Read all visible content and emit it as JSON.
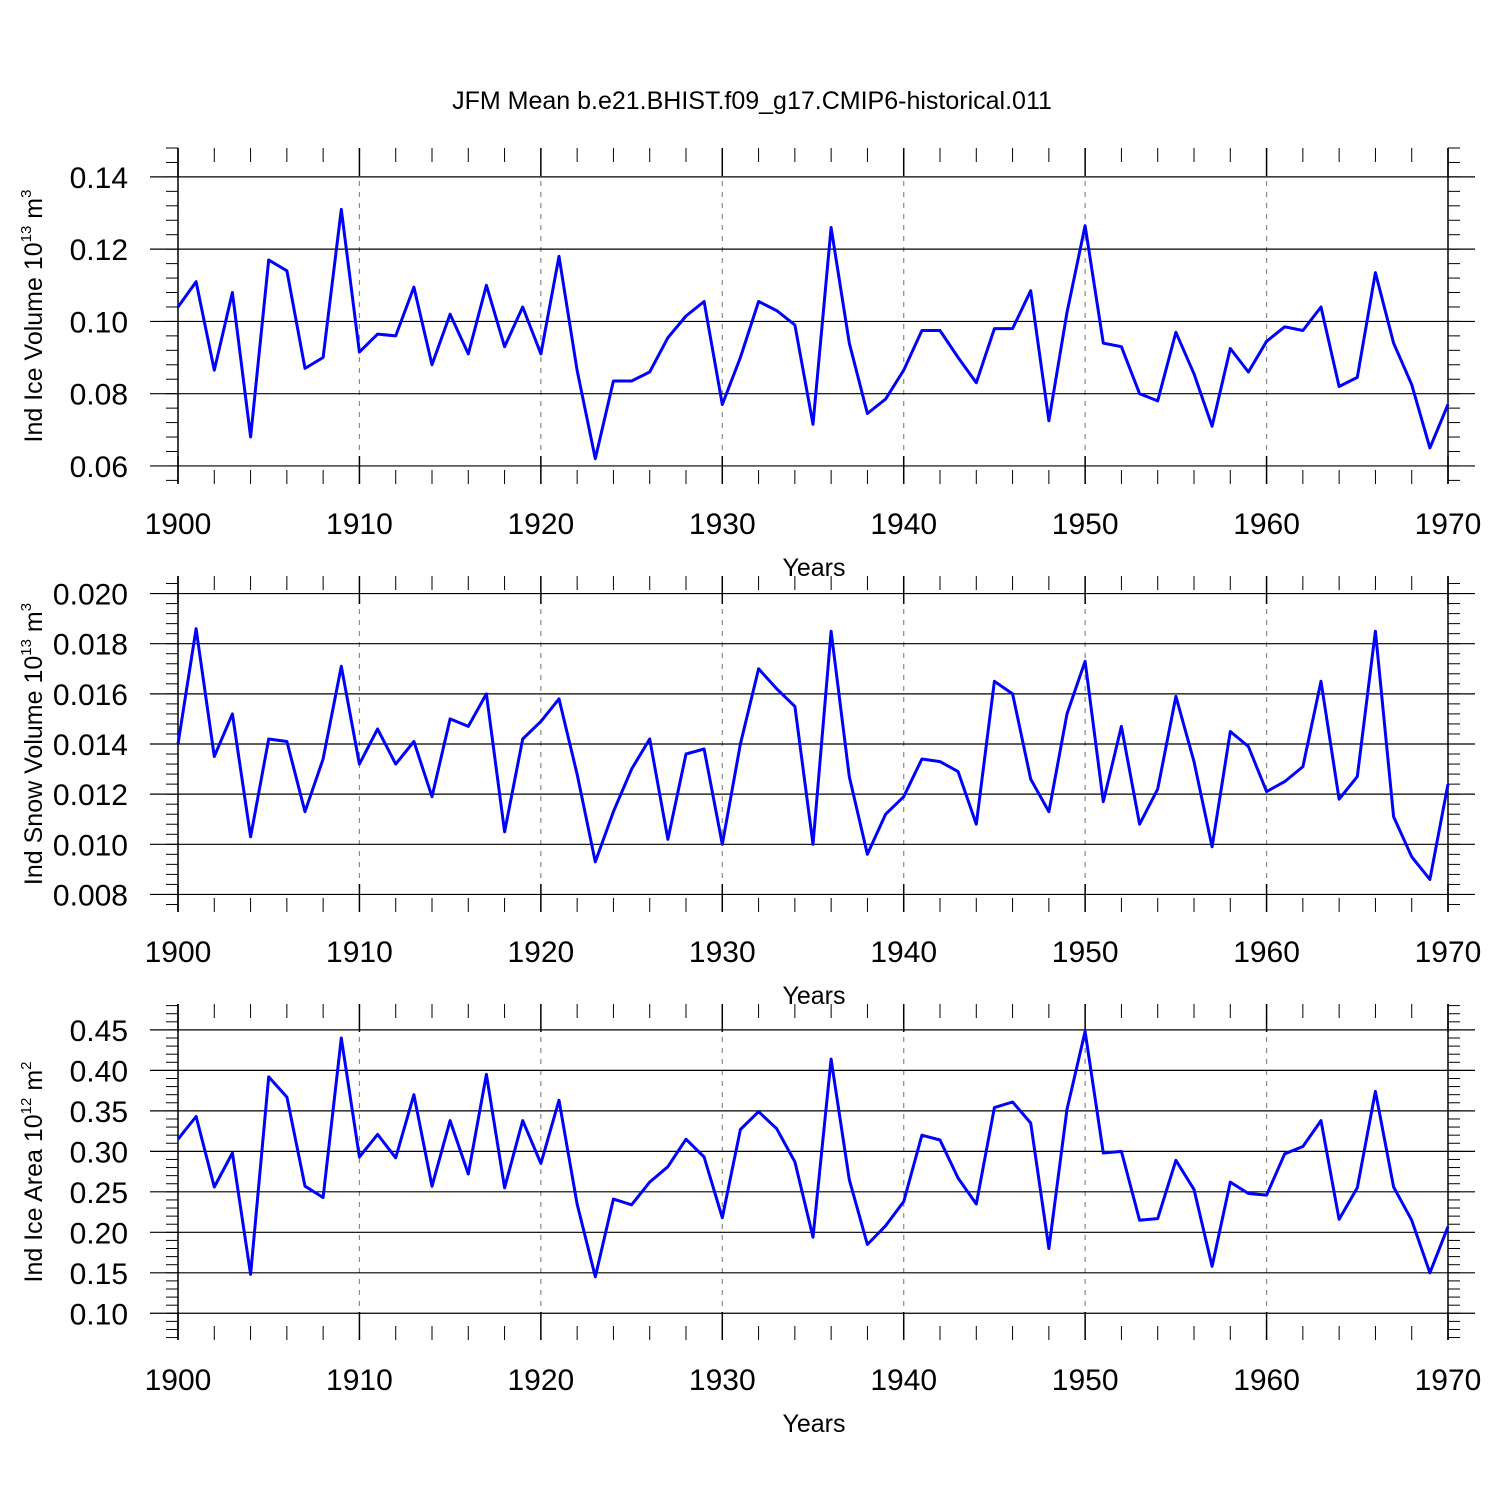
{
  "title": "JFM Mean b.e21.BHIST.f09_g17.CMIP6-historical.011",
  "colors": {
    "line": "#0000ff",
    "axes": "#000000",
    "grid": "#8a8a8a"
  },
  "chart_data": [
    {
      "type": "line",
      "ylabel": {
        "main": "Ind Ice Volume 10",
        "exp": "13",
        "unit": " m",
        "unit_exp": "3"
      },
      "xlabel": "Years",
      "xlim": [
        1900,
        1970
      ],
      "ylim": [
        0.055,
        0.148
      ],
      "xticks": [
        1900,
        1910,
        1920,
        1930,
        1940,
        1950,
        1960,
        1970
      ],
      "xtick_labels": [
        "1900",
        "1910",
        "1920",
        "1930",
        "1940",
        "1950",
        "1960",
        "1970"
      ],
      "yticks": [
        0.06,
        0.08,
        0.1,
        0.12,
        0.14
      ],
      "ytick_labels": [
        "0.06",
        "0.08",
        "0.10",
        "0.12",
        "0.14"
      ],
      "y_minor_step": 0.004,
      "grid": "vertical dashed",
      "series": [
        {
          "name": "Ind Ice Volume",
          "x_start": 1900,
          "values": [
            0.104,
            0.111,
            0.0865,
            0.108,
            0.068,
            0.117,
            0.114,
            0.087,
            0.09,
            0.131,
            0.0915,
            0.0965,
            0.096,
            0.1095,
            0.088,
            0.102,
            0.091,
            0.11,
            0.093,
            0.104,
            0.091,
            0.118,
            0.0865,
            0.062,
            0.0835,
            0.0835,
            0.086,
            0.0955,
            0.1015,
            0.1055,
            0.077,
            0.09,
            0.1055,
            0.103,
            0.099,
            0.0715,
            0.126,
            0.094,
            0.0745,
            0.0785,
            0.0865,
            0.0975,
            0.0975,
            0.09,
            0.083,
            0.098,
            0.098,
            0.1085,
            0.0725,
            0.1025,
            0.1265,
            0.094,
            0.093,
            0.08,
            0.078,
            0.097,
            0.0855,
            0.071,
            0.0925,
            0.086,
            0.0945,
            0.0985,
            0.0975,
            0.104,
            0.082,
            0.0845,
            0.1135,
            0.094,
            0.0825,
            0.065,
            0.077
          ]
        }
      ]
    },
    {
      "type": "line",
      "ylabel": {
        "main": "Ind Snow Volume 10",
        "exp": "13",
        "unit": " m",
        "unit_exp": "3"
      },
      "xlabel": "Years",
      "xlim": [
        1900,
        1970
      ],
      "ylim": [
        0.0073,
        0.0207
      ],
      "xticks": [
        1900,
        1910,
        1920,
        1930,
        1940,
        1950,
        1960,
        1970
      ],
      "xtick_labels": [
        "1900",
        "1910",
        "1920",
        "1930",
        "1940",
        "1950",
        "1960",
        "1970"
      ],
      "yticks": [
        0.008,
        0.01,
        0.012,
        0.014,
        0.016,
        0.018,
        0.02
      ],
      "ytick_labels": [
        "0.008",
        "0.010",
        "0.012",
        "0.014",
        "0.016",
        "0.018",
        "0.020"
      ],
      "y_minor_step": 0.0004,
      "grid": "vertical dashed",
      "series": [
        {
          "name": "Ind Snow Volume",
          "x_start": 1900,
          "values": [
            0.014,
            0.0186,
            0.0135,
            0.0152,
            0.0103,
            0.0142,
            0.0141,
            0.0113,
            0.0134,
            0.0171,
            0.0132,
            0.0146,
            0.0132,
            0.0141,
            0.0119,
            0.015,
            0.0147,
            0.016,
            0.0105,
            0.0142,
            0.0149,
            0.0158,
            0.0128,
            0.0093,
            0.0113,
            0.013,
            0.0142,
            0.0102,
            0.0136,
            0.0138,
            0.01,
            0.014,
            0.017,
            0.0162,
            0.0155,
            0.01,
            0.0185,
            0.0127,
            0.0096,
            0.0112,
            0.0119,
            0.0134,
            0.0133,
            0.0129,
            0.0108,
            0.0165,
            0.016,
            0.0126,
            0.0113,
            0.0152,
            0.0173,
            0.0117,
            0.0147,
            0.0108,
            0.0122,
            0.0159,
            0.0133,
            0.0099,
            0.0145,
            0.0139,
            0.0121,
            0.0125,
            0.0131,
            0.0165,
            0.0118,
            0.0127,
            0.0185,
            0.0111,
            0.0095,
            0.0086,
            0.0124
          ]
        }
      ]
    },
    {
      "type": "line",
      "ylabel": {
        "main": "Ind Ice Area 10",
        "exp": "12",
        "unit": " m",
        "unit_exp": "2"
      },
      "xlabel": "Years",
      "xlim": [
        1900,
        1970
      ],
      "ylim": [
        0.067,
        0.482
      ],
      "xticks": [
        1900,
        1910,
        1920,
        1930,
        1940,
        1950,
        1960,
        1970
      ],
      "xtick_labels": [
        "1900",
        "1910",
        "1920",
        "1930",
        "1940",
        "1950",
        "1960",
        "1970"
      ],
      "yticks": [
        0.1,
        0.15,
        0.2,
        0.25,
        0.3,
        0.35,
        0.4,
        0.45
      ],
      "ytick_labels": [
        "0.10",
        "0.15",
        "0.20",
        "0.25",
        "0.30",
        "0.35",
        "0.40",
        "0.45"
      ],
      "y_minor_step": 0.01,
      "grid": "vertical dashed",
      "series": [
        {
          "name": "Ind Ice Area",
          "x_start": 1900,
          "values": [
            0.315,
            0.343,
            0.256,
            0.298,
            0.148,
            0.392,
            0.367,
            0.257,
            0.243,
            0.44,
            0.293,
            0.321,
            0.292,
            0.37,
            0.257,
            0.338,
            0.272,
            0.395,
            0.255,
            0.338,
            0.285,
            0.363,
            0.235,
            0.145,
            0.241,
            0.234,
            0.262,
            0.281,
            0.315,
            0.293,
            0.218,
            0.327,
            0.349,
            0.328,
            0.287,
            0.194,
            0.414,
            0.265,
            0.185,
            0.208,
            0.238,
            0.32,
            0.314,
            0.267,
            0.235,
            0.354,
            0.361,
            0.335,
            0.18,
            0.352,
            0.448,
            0.298,
            0.3,
            0.215,
            0.217,
            0.289,
            0.253,
            0.158,
            0.262,
            0.248,
            0.246,
            0.297,
            0.306,
            0.338,
            0.216,
            0.255,
            0.374,
            0.256,
            0.215,
            0.15,
            0.207
          ]
        }
      ]
    }
  ]
}
